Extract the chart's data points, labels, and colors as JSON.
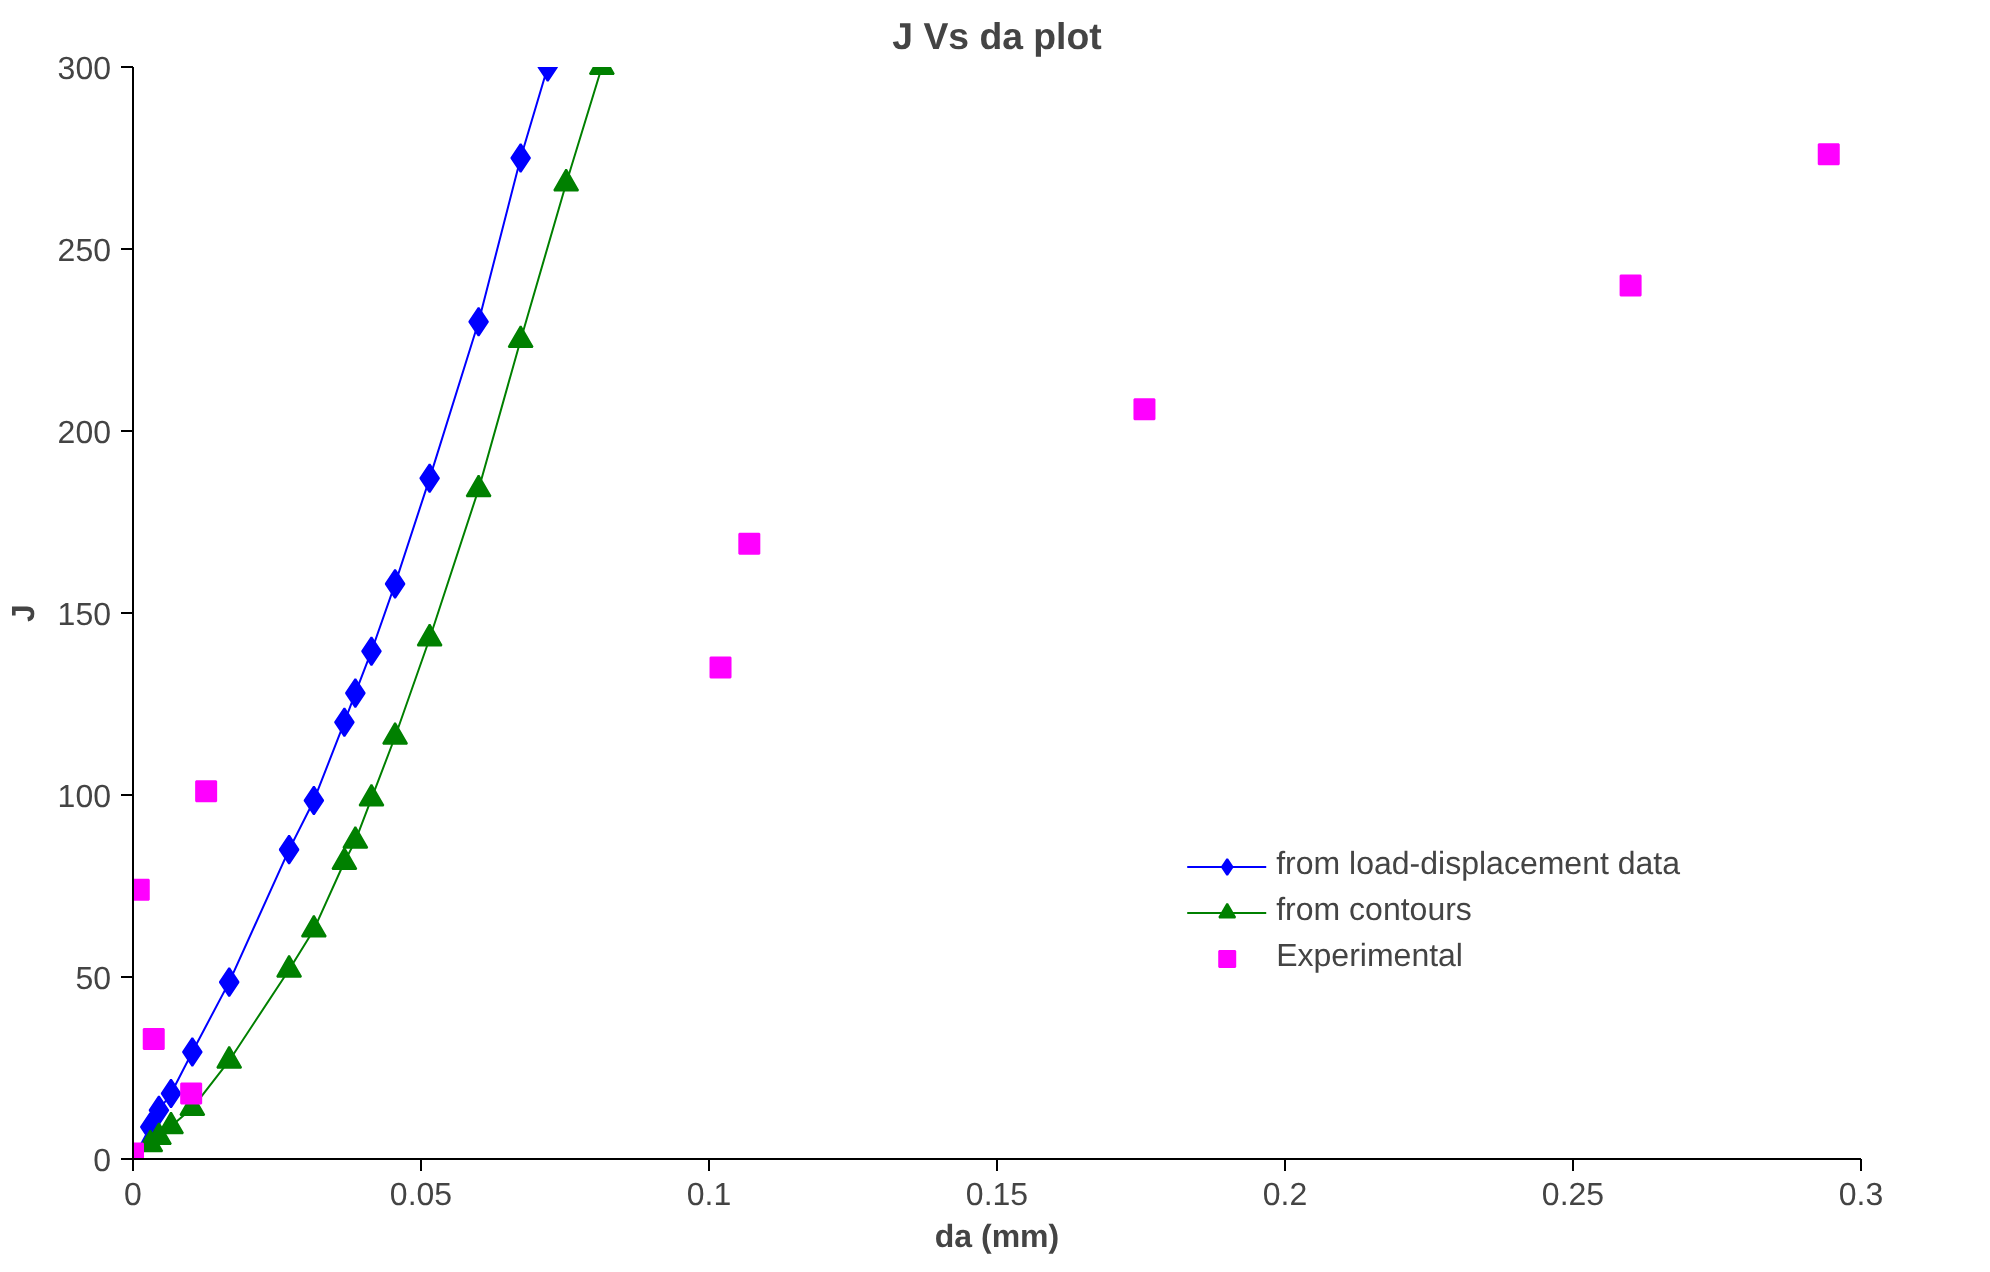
{
  "chart_data": {
    "type": "line",
    "title": "J Vs da plot",
    "xlabel": "da (mm)",
    "ylabel": "J",
    "xlim": [
      0,
      0.3
    ],
    "ylim": [
      0,
      300
    ],
    "xticks": [
      0,
      0.05,
      0.1,
      0.15,
      0.2,
      0.25,
      0.3
    ],
    "yticks": [
      0,
      50,
      100,
      150,
      200,
      250,
      300
    ],
    "grid": false,
    "legend": "bottom right",
    "series": [
      {
        "name": "from load-displacement data",
        "color": "#0000ff",
        "marker": "diamond",
        "x": [
          0,
          0.003,
          0.0045,
          0.0066,
          0.0103,
          0.0167,
          0.0271,
          0.0314,
          0.0367,
          0.0386,
          0.0414,
          0.0455,
          0.0515,
          0.06,
          0.0673,
          0.072
        ],
        "values": [
          0,
          8.8,
          13.4,
          18,
          29.4,
          48.6,
          85,
          98.5,
          120,
          128,
          139.5,
          158,
          187,
          230,
          275,
          300
        ]
      },
      {
        "name": "from contours",
        "color": "#008000",
        "marker": "triangle",
        "x": [
          0,
          0.003,
          0.0045,
          0.0066,
          0.0103,
          0.0167,
          0.0271,
          0.0314,
          0.0367,
          0.0386,
          0.0414,
          0.0455,
          0.0515,
          0.06,
          0.0673,
          0.0752,
          0.0814
        ],
        "values": [
          0,
          4,
          6,
          9,
          14,
          27,
          52,
          63,
          81.6,
          87.4,
          99,
          116,
          143,
          184,
          225,
          268,
          300
        ]
      },
      {
        "name": "Experimental",
        "type": "scatter",
        "color": "#ff00ff",
        "marker": "square",
        "x": [
          0,
          0.001,
          0.0036,
          0.0101,
          0.0127,
          0.102,
          0.107,
          0.1756,
          0.26,
          0.2944
        ],
        "values": [
          1.5,
          74,
          33,
          18,
          101,
          135,
          169,
          206,
          240,
          276
        ]
      }
    ]
  }
}
